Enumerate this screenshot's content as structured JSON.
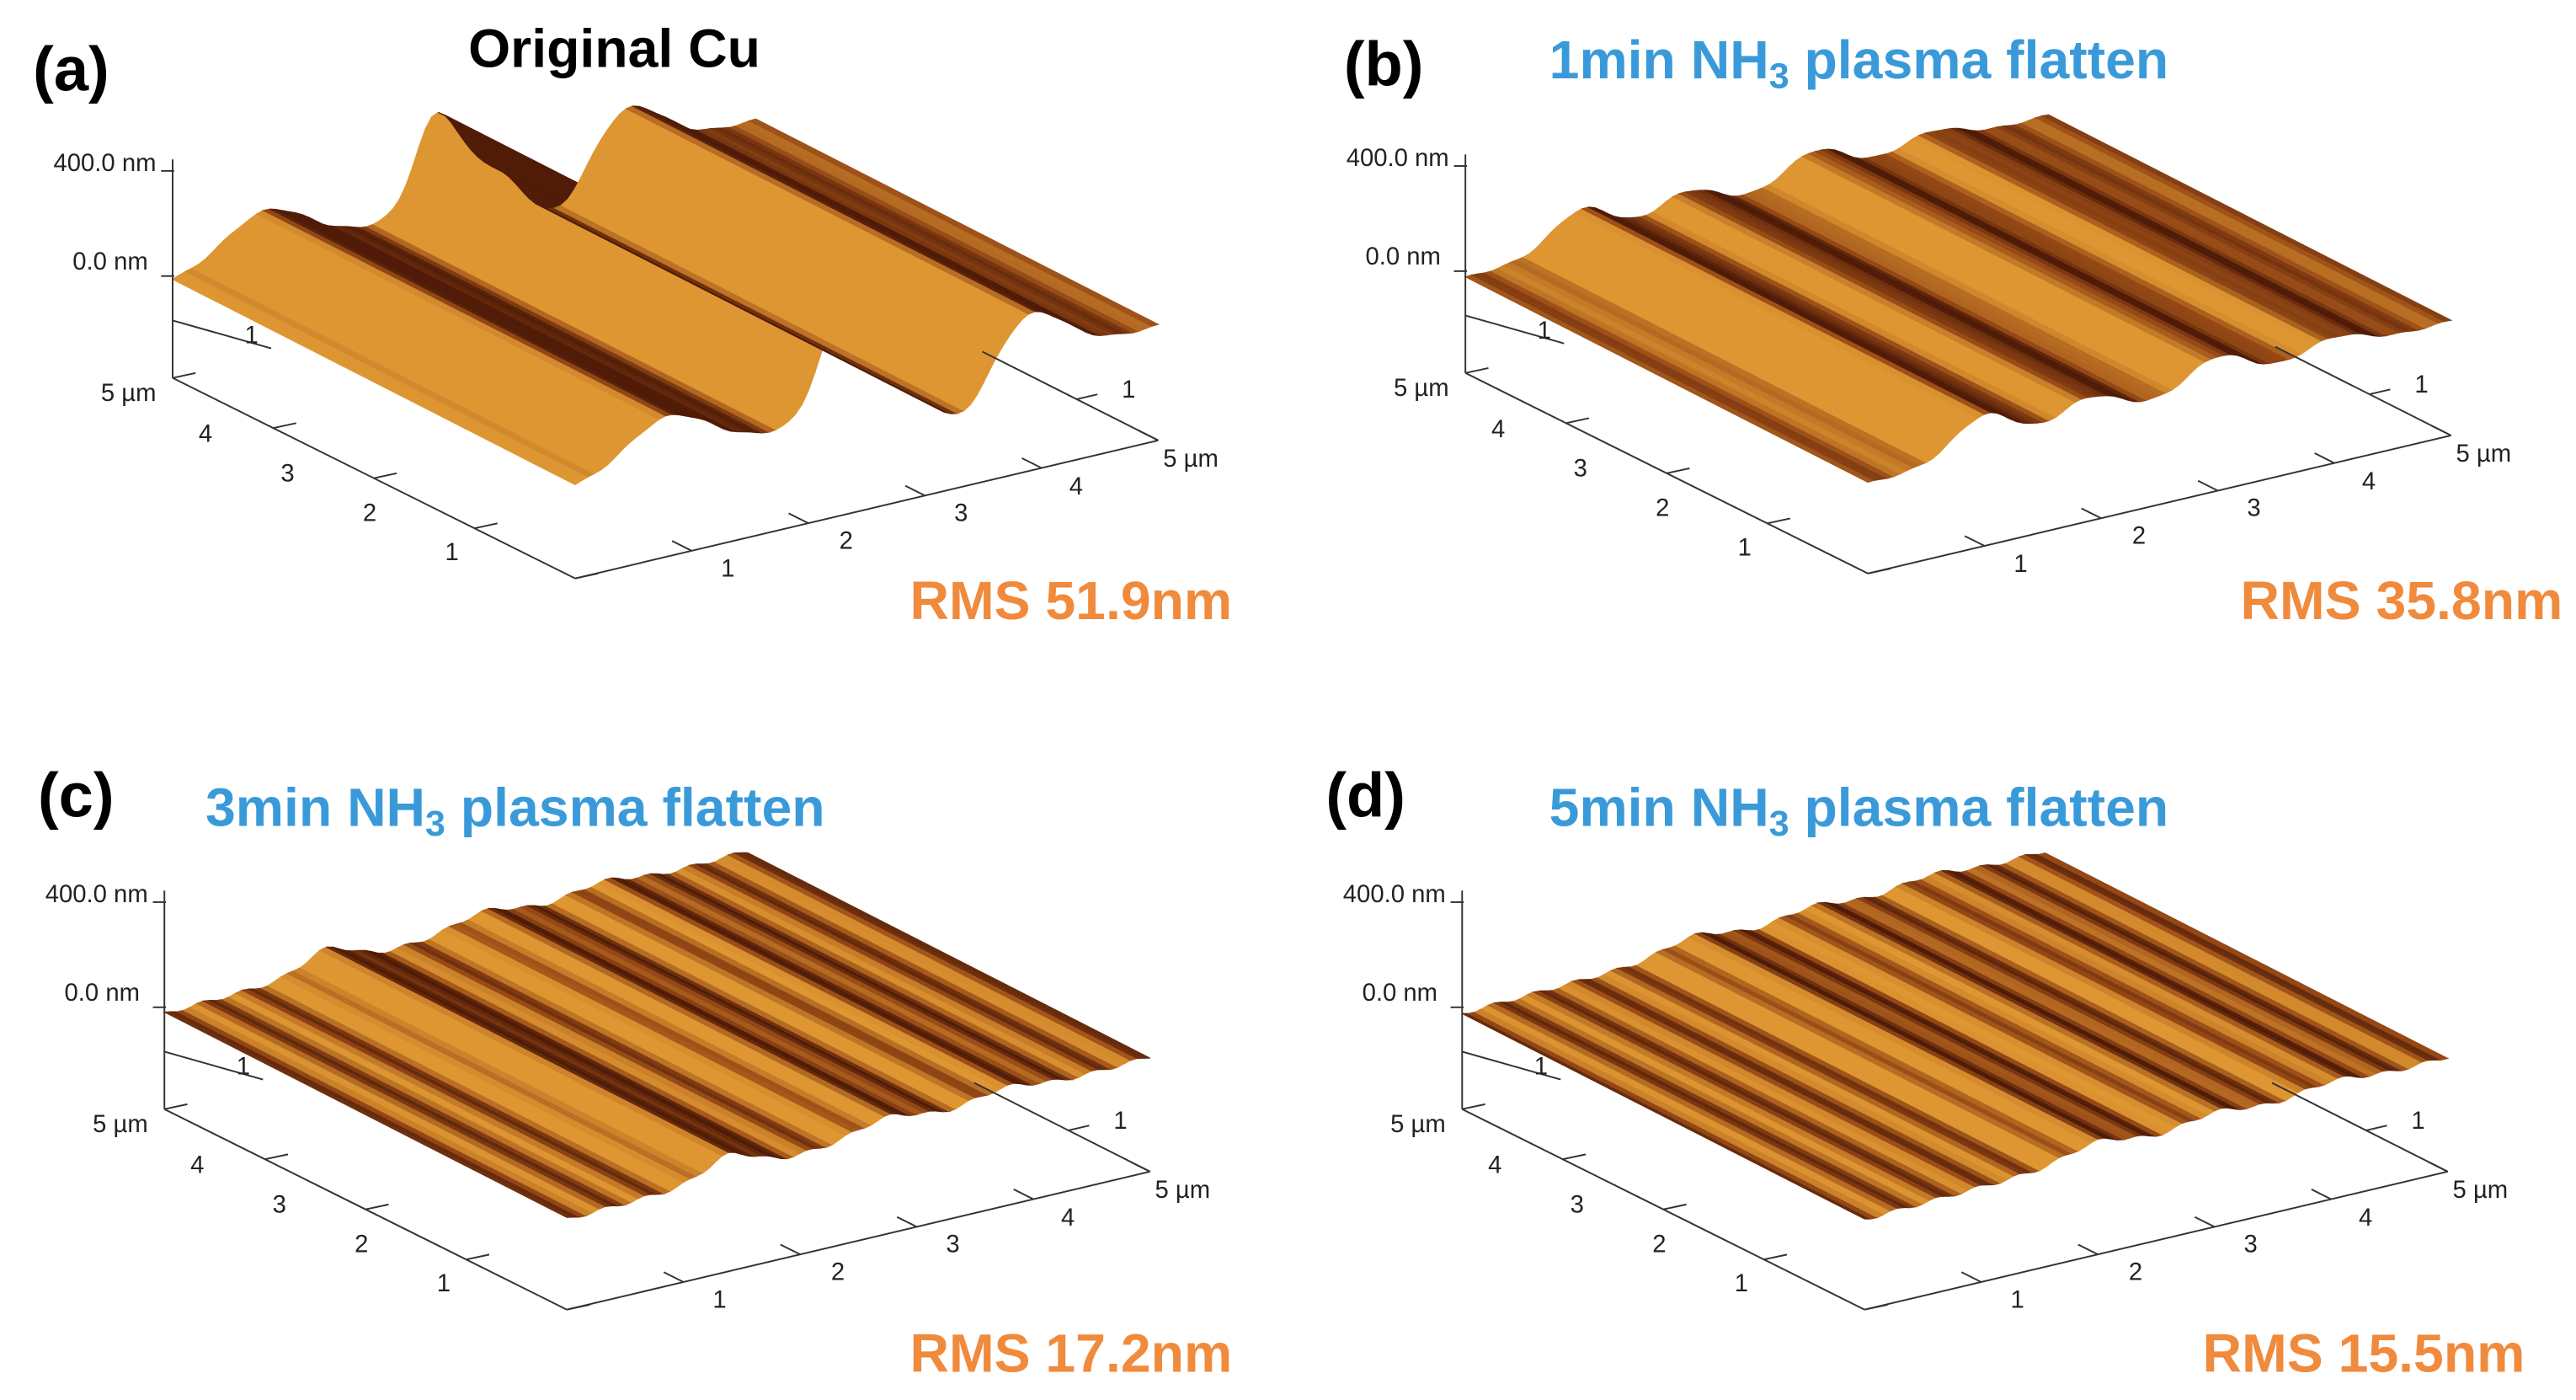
{
  "panels": [
    {
      "letter": "(a)",
      "title": {
        "text": "Original Cu"
      },
      "title_color": "#000000",
      "z_labels": [
        "400.0 nm",
        "0.0 nm"
      ],
      "left_ticks": [
        "5 µm",
        "4",
        "3",
        "2",
        "1"
      ],
      "front_ticks": [
        "1",
        "2",
        "3",
        "4",
        "5 µm"
      ],
      "right_tick": "1",
      "back_tick": "1",
      "rms": "RMS 51.9nm",
      "rms_color": "#f08a3c"
    },
    {
      "letter": "(b)",
      "title": {
        "text": "1min NH",
        "sub": "3",
        "tail": " plasma flatten"
      },
      "title_color": "#3a9ad9",
      "z_labels": [
        "400.0 nm",
        "0.0 nm"
      ],
      "left_ticks": [
        "5 µm",
        "4",
        "3",
        "2",
        "1"
      ],
      "front_ticks": [
        "1",
        "2",
        "3",
        "4",
        "5 µm"
      ],
      "right_tick": "1",
      "back_tick": "1",
      "rms": "RMS 35.8nm",
      "rms_color": "#f08a3c"
    },
    {
      "letter": "(c)",
      "title": {
        "text": "3min NH",
        "sub": "3",
        "tail": " plasma flatten"
      },
      "title_color": "#3a9ad9",
      "z_labels": [
        "400.0 nm",
        "0.0 nm"
      ],
      "left_ticks": [
        "5 µm",
        "4",
        "3",
        "2",
        "1"
      ],
      "front_ticks": [
        "1",
        "2",
        "3",
        "4",
        "5 µm"
      ],
      "right_tick": "1",
      "back_tick": "1",
      "rms": "RMS 17.2nm",
      "rms_color": "#f08a3c"
    },
    {
      "letter": "(d)",
      "title": {
        "text": "5min NH",
        "sub": "3",
        "tail": " plasma flatten"
      },
      "title_color": "#3a9ad9",
      "z_labels": [
        "400.0 nm",
        "0.0 nm"
      ],
      "left_ticks": [
        "5 µm",
        "4",
        "3",
        "2",
        "1"
      ],
      "front_ticks": [
        "1",
        "2",
        "3",
        "4",
        "5 µm"
      ],
      "right_tick": "1",
      "back_tick": "1",
      "rms": "RMS 15.5nm",
      "rms_color": "#f08a3c"
    }
  ]
}
